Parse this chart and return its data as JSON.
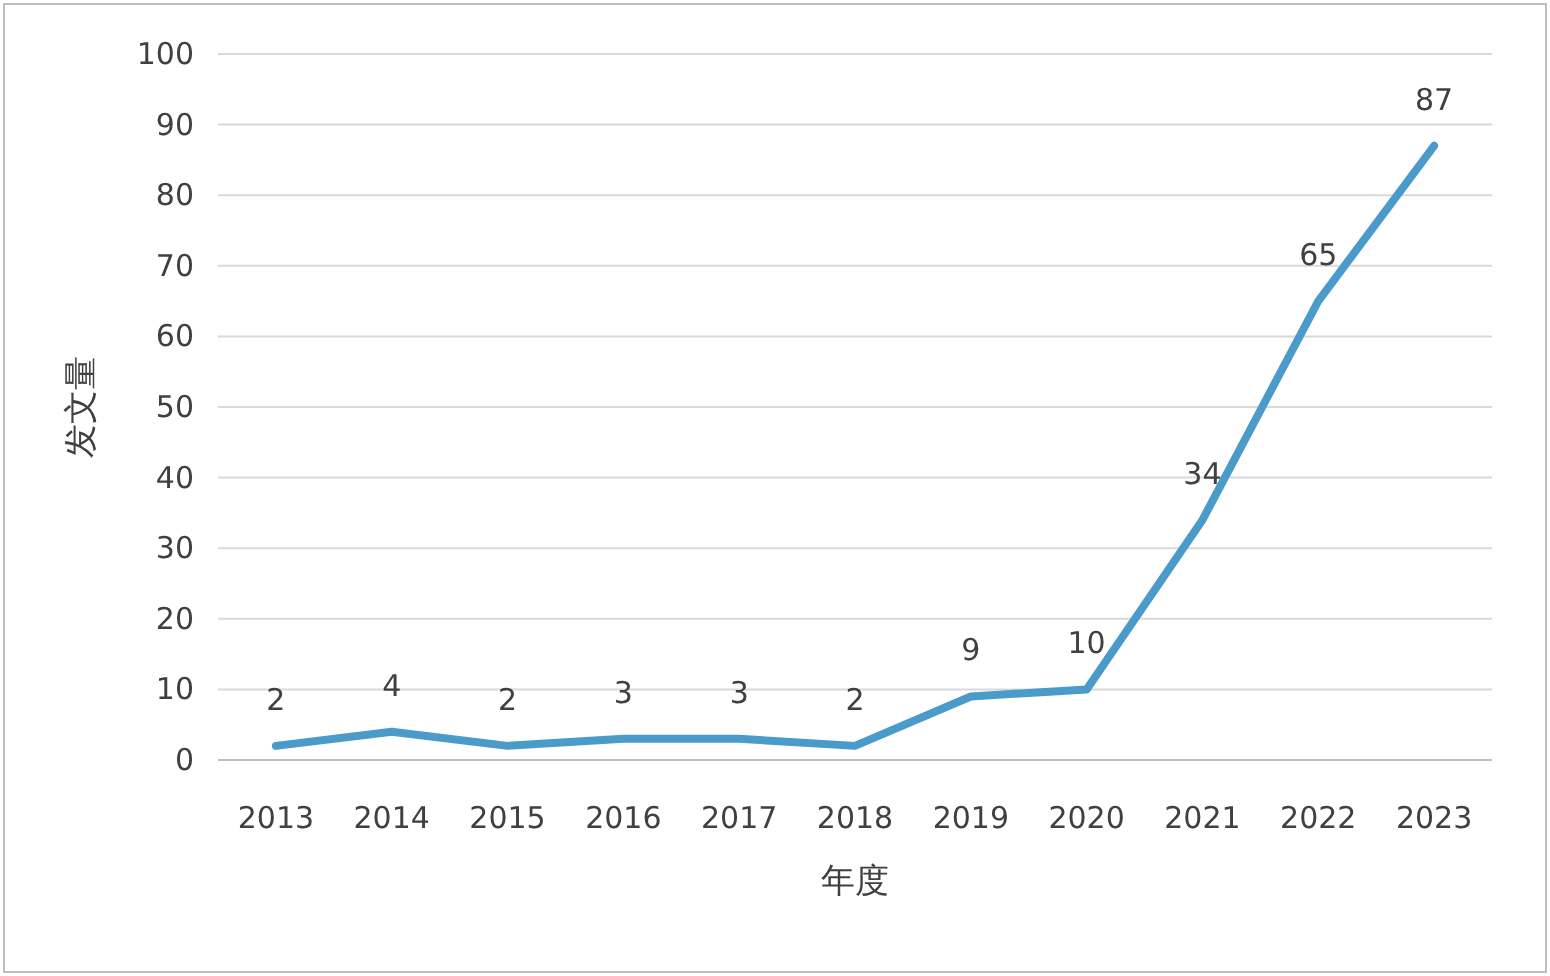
{
  "chart_data": {
    "type": "line",
    "ylabel": "发文量",
    "xlabel": "年度",
    "categories": [
      "2013",
      "2014",
      "2015",
      "2016",
      "2017",
      "2018",
      "2019",
      "2020",
      "2021",
      "2022",
      "2023"
    ],
    "values": [
      2,
      4,
      2,
      3,
      3,
      2,
      9,
      10,
      34,
      65,
      87
    ],
    "color": "#4a9bc9",
    "ylim": [
      0,
      100
    ],
    "yticks": [
      0,
      10,
      20,
      30,
      40,
      50,
      60,
      70,
      80,
      90,
      100
    ],
    "grid": "y",
    "data_labels": true,
    "marker": "none",
    "line_style": "solid"
  }
}
